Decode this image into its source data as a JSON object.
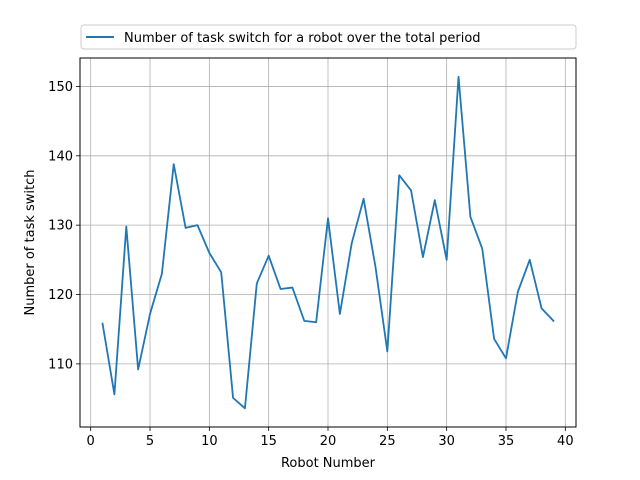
{
  "chart_data": {
    "type": "line",
    "title": "",
    "xlabel": "Robot Number",
    "ylabel": "Number of task switch",
    "xlim": [
      -0.9,
      40.9
    ],
    "ylim": [
      100.9,
      154.1
    ],
    "xticks": [
      0,
      5,
      10,
      15,
      20,
      25,
      30,
      35,
      40
    ],
    "yticks": [
      110,
      120,
      130,
      140,
      150
    ],
    "grid": true,
    "legend_position": "top",
    "series": [
      {
        "name": "Number of task switch for a robot over the total period",
        "color": "#1f77b4",
        "x": [
          1,
          2,
          3,
          4,
          5,
          6,
          7,
          8,
          9,
          10,
          11,
          12,
          13,
          14,
          15,
          16,
          17,
          18,
          19,
          20,
          21,
          22,
          23,
          24,
          25,
          26,
          27,
          28,
          29,
          30,
          31,
          32,
          33,
          34,
          35,
          36,
          37,
          38,
          39
        ],
        "y": [
          115.8,
          105.6,
          129.8,
          109.2,
          117.2,
          123.0,
          138.8,
          129.6,
          130.0,
          126.0,
          123.2,
          105.1,
          103.6,
          121.6,
          125.6,
          120.8,
          121.0,
          116.2,
          116.0,
          131.0,
          117.2,
          127.4,
          133.8,
          124.0,
          111.8,
          137.2,
          135.0,
          125.4,
          133.6,
          125.0,
          151.4,
          131.2,
          126.6,
          113.6,
          110.8,
          120.4,
          125.0,
          118.0,
          116.2
        ]
      }
    ]
  }
}
